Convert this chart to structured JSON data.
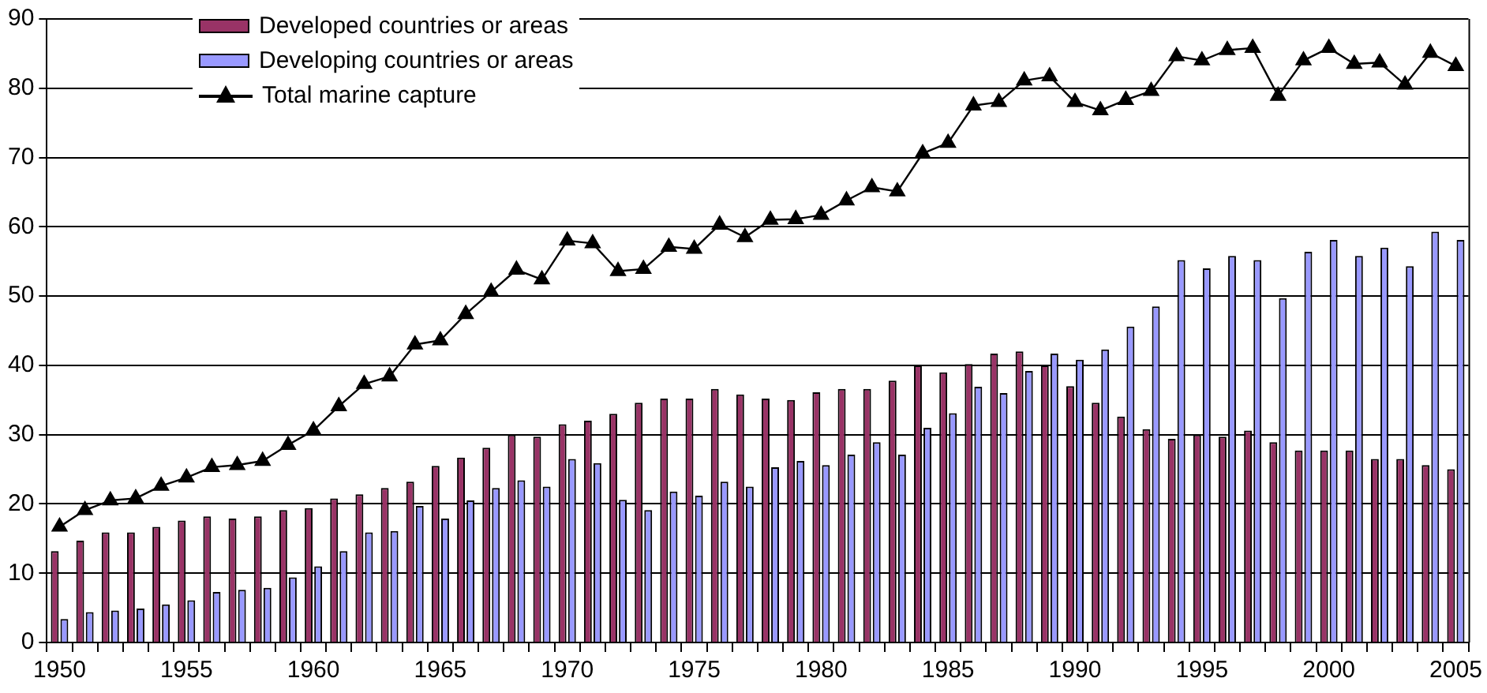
{
  "chart_data": {
    "type": "bar",
    "categories": [
      "1950",
      null,
      null,
      null,
      null,
      "1955",
      null,
      null,
      null,
      null,
      "1960",
      null,
      null,
      null,
      null,
      "1965",
      null,
      null,
      null,
      null,
      "1970",
      null,
      null,
      null,
      null,
      "1975",
      null,
      null,
      null,
      null,
      "1980",
      null,
      null,
      null,
      null,
      "1985",
      null,
      null,
      null,
      null,
      "1990",
      null,
      null,
      null,
      null,
      "1995",
      null,
      null,
      null,
      null,
      "2000",
      null,
      null,
      null,
      null,
      "2005"
    ],
    "series": [
      {
        "name": "Developed countries or areas",
        "color": "#993366",
        "values": [
          13.2,
          14.7,
          15.9,
          15.9,
          16.7,
          17.6,
          18.2,
          17.9,
          18.2,
          19.1,
          19.4,
          20.8,
          21.4,
          22.3,
          23.2,
          25.5,
          26.7,
          28.1,
          30.0,
          29.7,
          31.5,
          32.0,
          33.0,
          34.6,
          35.2,
          35.2,
          36.6,
          35.8,
          35.2,
          35.0,
          36.1,
          36.6,
          36.6,
          37.8,
          40.0,
          39.0,
          40.2,
          41.7,
          42.0,
          40.0,
          37.0,
          34.6,
          32.6,
          30.8,
          29.4,
          30.0,
          29.7,
          30.6,
          28.9,
          27.7,
          27.7,
          27.7,
          26.5,
          26.5,
          25.6,
          25.0
        ]
      },
      {
        "name": "Developing countries or areas",
        "color": "#9999ff",
        "values": [
          3.4,
          4.4,
          4.6,
          4.9,
          5.5,
          6.1,
          7.3,
          7.6,
          7.9,
          9.4,
          11.0,
          13.2,
          15.9,
          16.1,
          19.7,
          17.9,
          20.5,
          22.3,
          23.4,
          22.5,
          26.5,
          25.9,
          20.6,
          19.1,
          21.8,
          21.2,
          23.2,
          22.5,
          25.3,
          26.2,
          25.6,
          27.1,
          28.9,
          27.1,
          31.0,
          33.1,
          36.9,
          36.0,
          39.2,
          41.7,
          40.8,
          42.3,
          45.6,
          48.5,
          55.2,
          54.0,
          55.8,
          55.2,
          49.7,
          56.4,
          58.1,
          55.8,
          57.0,
          54.3,
          59.3,
          58.1
        ]
      },
      {
        "name": "Total marine capture",
        "type": "line",
        "color": "#000000",
        "marker": "triangle",
        "values": [
          16.7,
          19.1,
          20.5,
          20.8,
          22.6,
          23.8,
          25.3,
          25.6,
          26.2,
          28.5,
          30.6,
          34.1,
          37.3,
          38.4,
          43.0,
          43.6,
          47.4,
          50.6,
          53.8,
          52.4,
          58.0,
          57.6,
          53.6,
          53.9,
          57.1,
          56.8,
          60.3,
          58.5,
          61.0,
          61.1,
          61.7,
          63.8,
          65.7,
          65.1,
          70.6,
          72.1,
          77.5,
          78.0,
          81.1,
          81.7,
          78.0,
          76.8,
          78.3,
          79.6,
          84.6,
          84.0,
          85.5,
          85.8,
          78.9,
          84.0,
          85.8,
          83.5,
          83.7,
          80.5,
          85.1,
          83.2
        ]
      }
    ],
    "ylim": [
      0,
      90
    ],
    "yticks": [
      0,
      10,
      20,
      30,
      40,
      50,
      60,
      70,
      80,
      90
    ],
    "grid": "y",
    "legend": "top left"
  }
}
